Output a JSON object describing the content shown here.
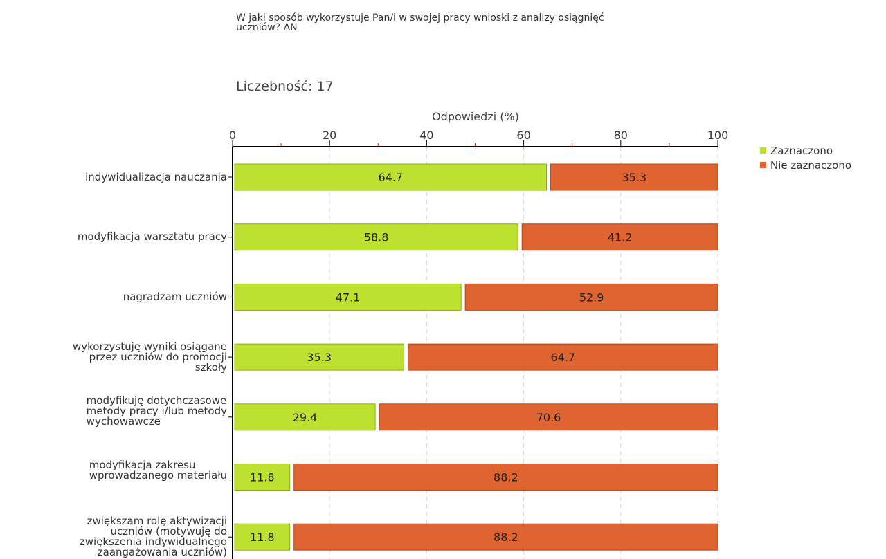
{
  "title": "W jaki sposób wykorzystuje Pan/i w swojej pracy wnioski z analizy osiągnięć\nuczniów? AN",
  "count_label": "Liczebność: 17",
  "colors": {
    "zaznaczono": "#bde12f",
    "zaznaczono_border": "#8cae14",
    "nie_zaznaczono": "#e0642f",
    "nie_zaznaczono_border": "#b24a20",
    "axis": "#000000",
    "minor_tick": "#e00000",
    "grid": "#d9d9d9"
  },
  "chart_data": {
    "type": "bar",
    "orientation": "horizontal",
    "stacked": true,
    "xlabel": "Odpowiedzi (%)",
    "xlim": [
      0,
      100
    ],
    "xticks": [
      "0",
      "20",
      "40",
      "60",
      "80",
      "100"
    ],
    "categories": [
      "indywidualizacja nauczania",
      "modyfikacja warsztatu pracy",
      "nagradzam uczniów",
      "wykorzystuję wyniki osiągane\nprzez uczniów do promocji\nszkoły",
      "modyfikuję dotychczasowe\nmetody pracy i/lub metody\nwychowawcze",
      "modyfikacja zakresu\nwprowadzanego materiału",
      "zwiększam rolę aktywizacji\nuczniów (motywuję do\nzwiększenia indywidualnego\nzaangażowania uczniów)"
    ],
    "series": [
      {
        "name": "Zaznaczono",
        "values": [
          64.7,
          58.8,
          47.1,
          35.3,
          29.4,
          11.8,
          11.8
        ],
        "labels": [
          "64.7",
          "58.8",
          "47.1",
          "35.3",
          "29.4",
          "11.8",
          "11.8"
        ]
      },
      {
        "name": "Nie zaznaczono",
        "values": [
          35.3,
          41.2,
          52.9,
          64.7,
          70.6,
          88.2,
          88.2
        ],
        "labels": [
          "35.3",
          "41.2",
          "52.9",
          "64.7",
          "70.6",
          "88.2",
          "88.2"
        ]
      }
    ],
    "legend": "right",
    "grid": true
  }
}
